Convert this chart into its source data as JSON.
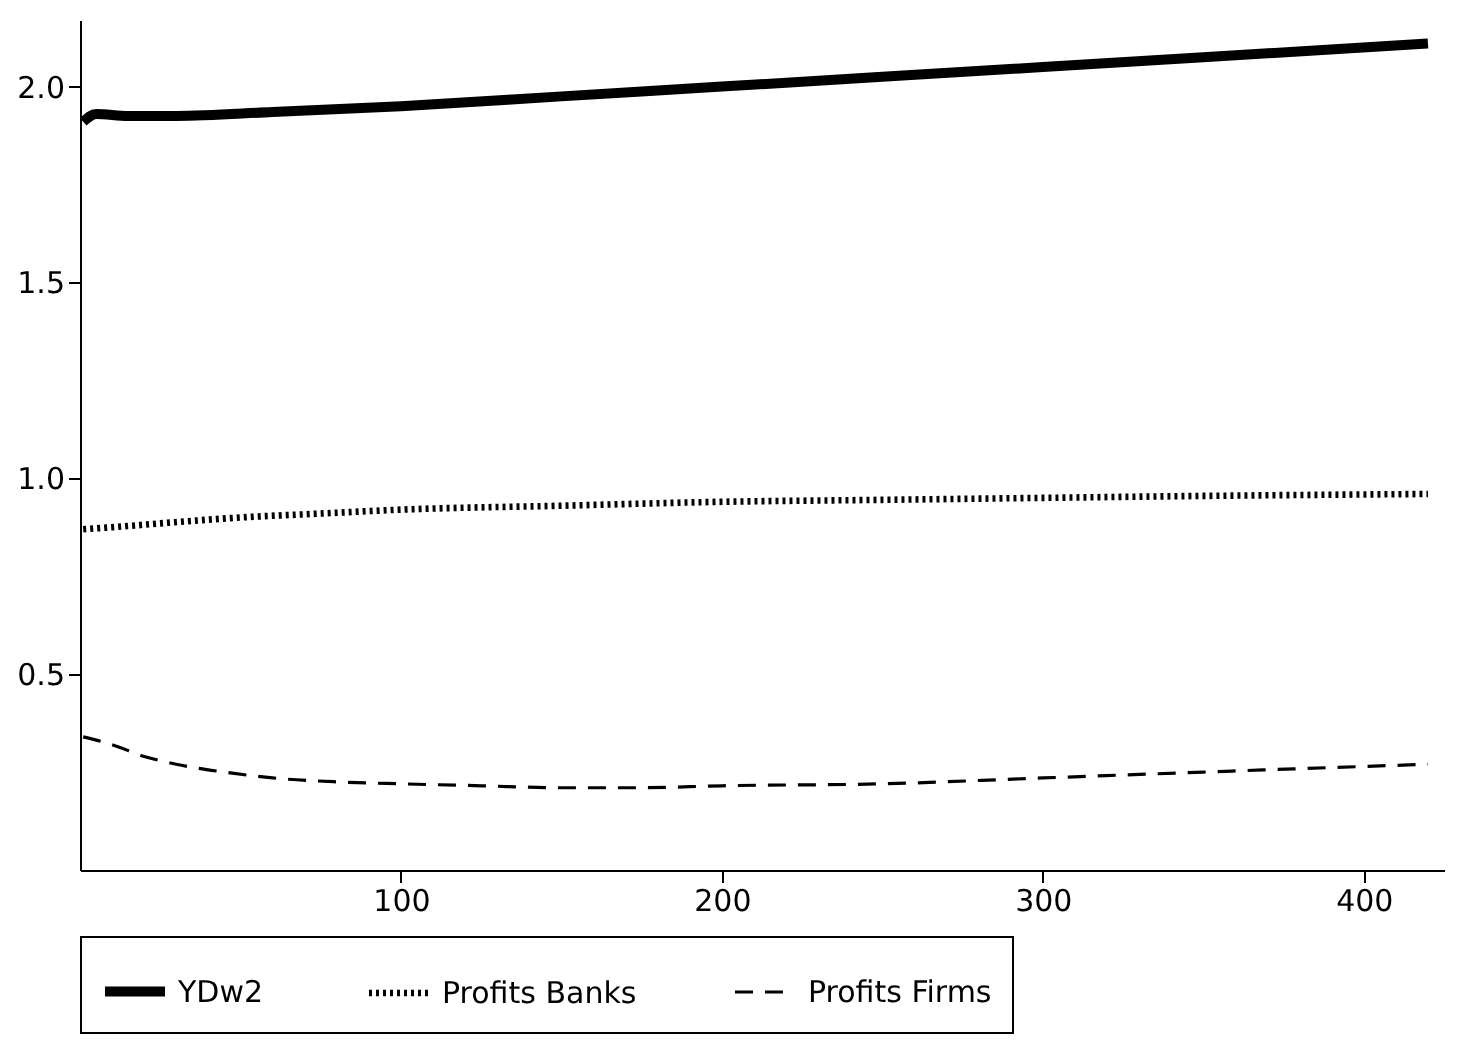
{
  "chart_data": {
    "type": "line",
    "xlim": [
      0,
      425
    ],
    "xticks": [
      100,
      200,
      300,
      400
    ],
    "ylim": [
      0,
      2.17
    ],
    "yticks": [
      0.5,
      {
        "value": 1,
        "label": "1.0"
      },
      1.5,
      {
        "value": 2,
        "label": "2.0"
      }
    ],
    "grid": false,
    "legend": "bottom",
    "marker": "none",
    "series": [
      {
        "name": "YDw2",
        "color": "#000000",
        "line_style": "solid",
        "x": [
          1,
          5,
          15,
          30,
          60,
          100,
          150,
          200,
          250,
          300,
          350,
          420
        ],
        "values": [
          1.91,
          1.93,
          1.925,
          1.925,
          1.935,
          1.95,
          1.975,
          2.0,
          2.025,
          2.05,
          2.075,
          2.11
        ]
      },
      {
        "name": "Profits Banks",
        "color": "#000000",
        "line_style": "dotted",
        "x": [
          1,
          10,
          25,
          50,
          75,
          100,
          150,
          200,
          250,
          300,
          350,
          420
        ],
        "values": [
          0.87,
          0.875,
          0.885,
          0.9,
          0.91,
          0.92,
          0.93,
          0.94,
          0.945,
          0.95,
          0.955,
          0.96
        ]
      },
      {
        "name": "Profits Firms",
        "color": "#000000",
        "line_style": "dashed",
        "x": [
          1,
          10,
          20,
          30,
          45,
          60,
          80,
          100,
          125,
          150,
          175,
          200,
          250,
          300,
          350,
          420
        ],
        "values": [
          0.34,
          0.32,
          0.29,
          0.27,
          0.25,
          0.235,
          0.225,
          0.22,
          0.215,
          0.21,
          0.21,
          0.215,
          0.22,
          0.235,
          0.25,
          0.27
        ]
      }
    ]
  }
}
